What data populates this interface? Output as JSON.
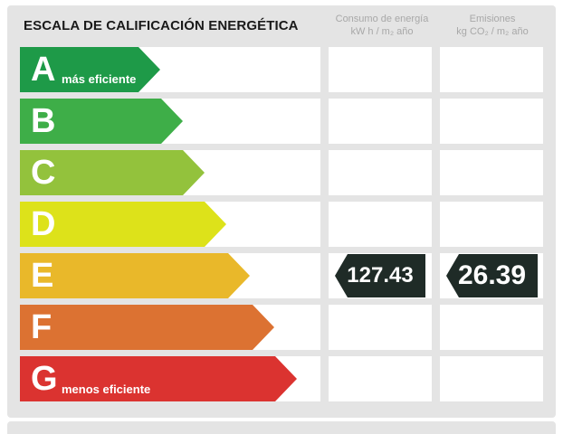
{
  "header": {
    "title": "ESCALA DE CALIFICACIÓN ENERGÉTICA",
    "consumption": {
      "line1": "Consumo de energía",
      "line2": "kW h / m₂ año"
    },
    "emissions": {
      "line1": "Emisiones",
      "line2": "kg CO₂ / m₂ año"
    }
  },
  "scale": [
    {
      "letter": "A",
      "label": "más eficiente",
      "color": "#1e9a48"
    },
    {
      "letter": "B",
      "label": "",
      "color": "#3eae48"
    },
    {
      "letter": "C",
      "label": "",
      "color": "#93c23c"
    },
    {
      "letter": "D",
      "label": "",
      "color": "#dde21a"
    },
    {
      "letter": "E",
      "label": "",
      "color": "#e9b82a"
    },
    {
      "letter": "F",
      "label": "",
      "color": "#dc7232"
    },
    {
      "letter": "G",
      "label": "menos eficiente",
      "color": "#db3330"
    }
  ],
  "rating": {
    "class": "E",
    "consumption_value": "127.43",
    "emissions_value": "26.39",
    "tag_color": "#1f2b27"
  }
}
